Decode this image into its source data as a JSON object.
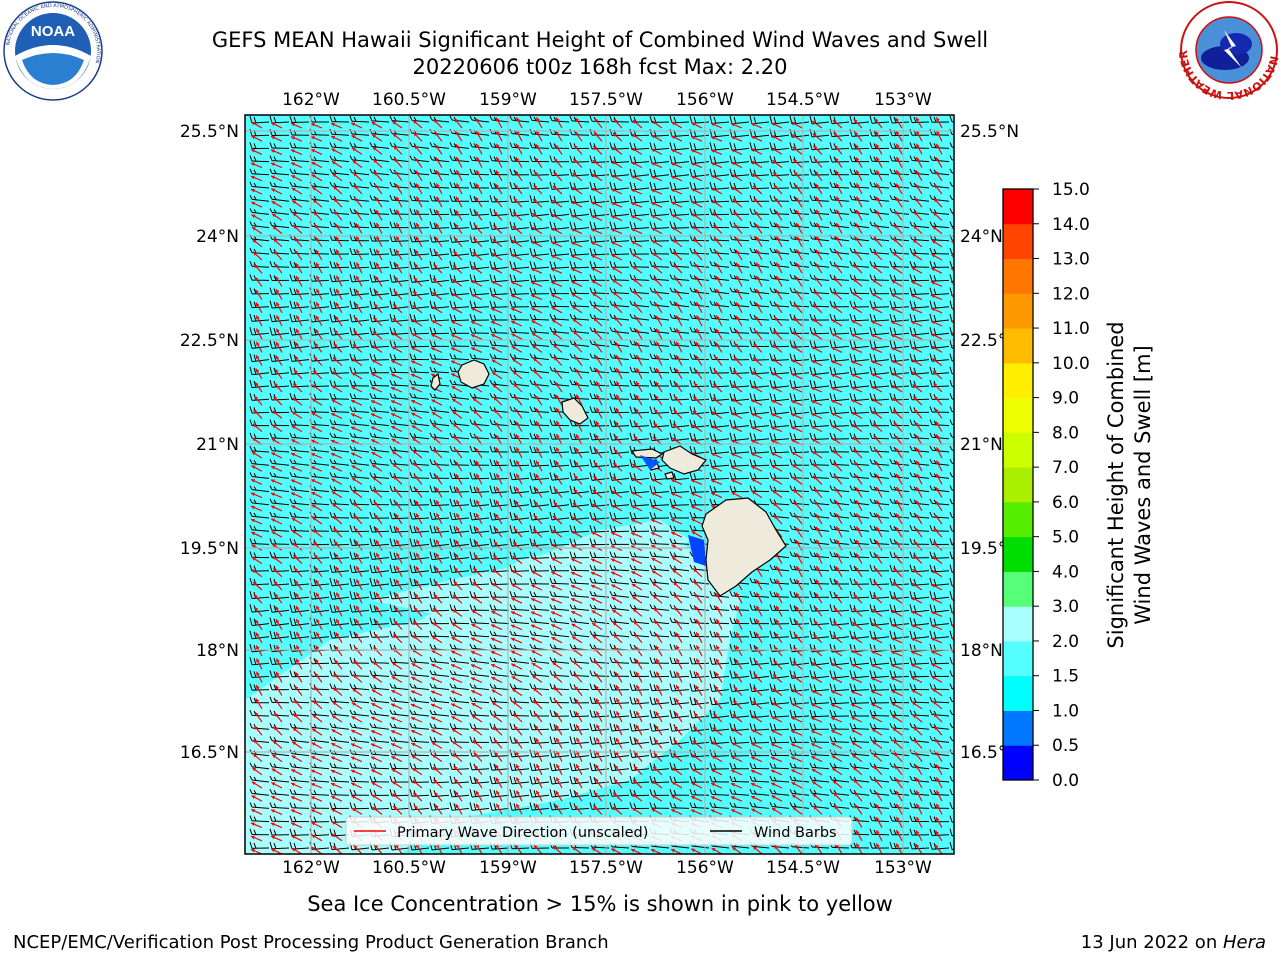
{
  "header": {
    "title_line1": "GEFS MEAN Hawaii Significant Height of Combined Wind Waves and Swell",
    "title_line2": "20220606 t00z 168h fcst   Max: 2.20"
  },
  "logos": {
    "left": {
      "name": "NOAA",
      "ring_text": "NATIONAL OCEANIC AND ATMOSPHERIC ADMINISTRATION",
      "bottom_text": "U.S. DEPARTMENT OF COMMERCE"
    },
    "right": {
      "ring_text": "NATIONAL WEATHER SERVICE"
    }
  },
  "map": {
    "lon_ticks": [
      "162°W",
      "160.5°W",
      "159°W",
      "157.5°W",
      "156°W",
      "154.5°W",
      "153°W"
    ],
    "lat_ticks": [
      "25.5°N",
      "24°N",
      "22.5°N",
      "21°N",
      "19.5°N",
      "18°N",
      "16.5°N"
    ],
    "legend": {
      "wave": "Primary Wave Direction (unscaled)",
      "barb": "Wind Barbs"
    },
    "colors": {
      "wave_arrow": "#ff0000",
      "barb": "#000000",
      "land": "#eeeadc",
      "sea": "#55ffff",
      "sea_light": "#aaffff"
    }
  },
  "colorbar": {
    "label_line1": "Significant Height of Combined",
    "label_line2": "Wind Waves and Swell [m]",
    "ticks": [
      "0.0",
      "0.5",
      "1.0",
      "1.5",
      "2.0",
      "3.0",
      "4.0",
      "5.0",
      "6.0",
      "7.0",
      "8.0",
      "9.0",
      "10.0",
      "11.0",
      "12.0",
      "13.0",
      "14.0",
      "15.0"
    ],
    "colors": [
      "#0000ff",
      "#0077ff",
      "#00ffff",
      "#55ffff",
      "#aaffff",
      "#55ff77",
      "#00dd00",
      "#55ee00",
      "#aaee00",
      "#ccff00",
      "#eeff00",
      "#ffee00",
      "#ffbb00",
      "#ff9900",
      "#ff7700",
      "#ff4400",
      "#ff0000"
    ]
  },
  "footer": {
    "note": "Sea Ice Concentration > 15% is shown in pink to yellow",
    "left": "NCEP/EMC/Verification Post Processing Product Generation Branch",
    "right_date": "13 Jun 2022 on ",
    "right_host": "Hera"
  }
}
